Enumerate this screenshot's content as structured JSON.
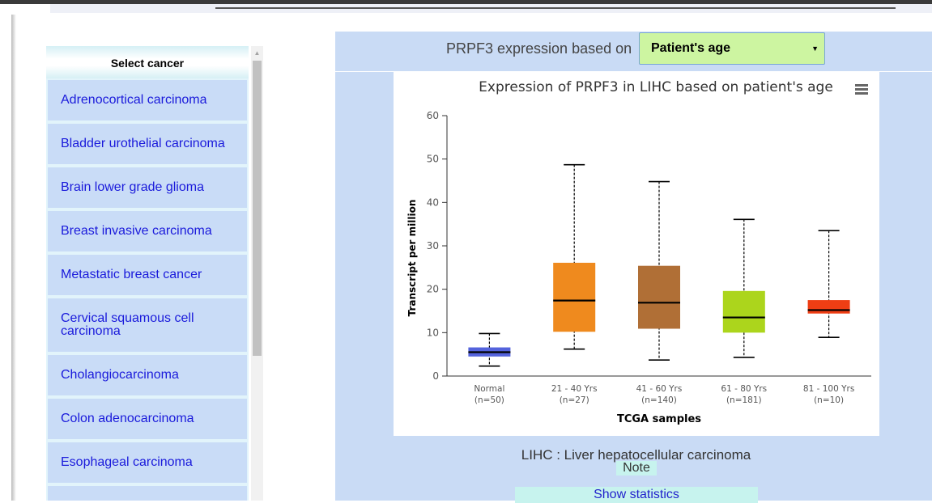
{
  "sidebar": {
    "header": "Select cancer",
    "items": [
      {
        "label": "Adrenocortical carcinoma"
      },
      {
        "label": "Bladder urothelial carcinoma"
      },
      {
        "label": "Brain lower grade glioma"
      },
      {
        "label": "Breast invasive carcinoma"
      },
      {
        "label": "Metastatic breast cancer"
      },
      {
        "label": "Cervical squamous cell carcinoma"
      },
      {
        "label": "Cholangiocarcinoma"
      },
      {
        "label": "Colon adenocarcinoma"
      },
      {
        "label": "Esophageal carcinoma"
      },
      {
        "label": ""
      }
    ]
  },
  "expression": {
    "label": "PRPF3 expression based on",
    "selected": "Patient's age"
  },
  "caption": "LIHC : Liver hepatocellular carcinoma",
  "note": "Note",
  "show_stats": "Show statistics",
  "chart_data": {
    "type": "boxplot",
    "title": "Expression of PRPF3 in LIHC based on patient's age",
    "xlabel": "TCGA samples",
    "ylabel": "Transcript per million",
    "ylim": [
      0,
      60
    ],
    "yticks": [
      0,
      10,
      20,
      30,
      40,
      50,
      60
    ],
    "grid": false,
    "legend": "none",
    "categories": [
      {
        "name": "Normal",
        "n": "(n=50)",
        "color": "#5463dc",
        "whisker_low": 2.3,
        "q1": 4.5,
        "median": 5.5,
        "q3": 6.6,
        "whisker_high": 9.8
      },
      {
        "name": "21 - 40 Yrs",
        "n": "(n=27)",
        "color": "#ef8a1e",
        "whisker_low": 6.2,
        "q1": 10.2,
        "median": 17.4,
        "q3": 26.1,
        "whisker_high": 48.7
      },
      {
        "name": "41 - 60 Yrs",
        "n": "(n=140)",
        "color": "#b06f36",
        "whisker_low": 3.7,
        "q1": 10.9,
        "median": 16.9,
        "q3": 25.4,
        "whisker_high": 44.8
      },
      {
        "name": "61 - 80 Yrs",
        "n": "(n=181)",
        "color": "#acd51c",
        "whisker_low": 4.3,
        "q1": 10.0,
        "median": 13.5,
        "q3": 19.6,
        "whisker_high": 36.1
      },
      {
        "name": "81 - 100 Yrs",
        "n": "(n=10)",
        "color": "#ef3e14",
        "whisker_low": 8.9,
        "q1": 14.4,
        "median": 15.2,
        "q3": 17.5,
        "whisker_high": 33.5
      }
    ]
  }
}
